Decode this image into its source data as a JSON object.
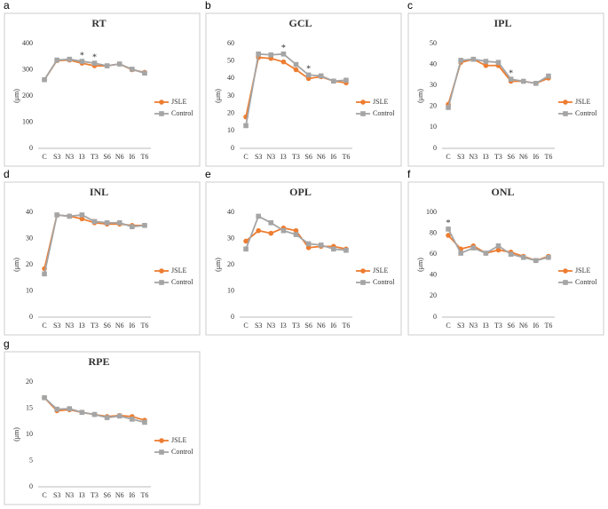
{
  "chart_data": [
    {
      "type": "line",
      "panel": "a",
      "title": "RT",
      "ylabel": "(μm)",
      "categories": [
        "C",
        "S3",
        "N3",
        "I3",
        "T3",
        "S6",
        "N6",
        "I6",
        "T6"
      ],
      "series": [
        {
          "name": "JSLE",
          "color": "#ED7D31",
          "marker": "circle",
          "values": [
            262,
            335,
            337,
            325,
            315,
            315,
            322,
            300,
            290
          ]
        },
        {
          "name": "Control",
          "color": "#A5A5A5",
          "marker": "square",
          "values": [
            262,
            337,
            340,
            332,
            325,
            315,
            322,
            302,
            287
          ]
        }
      ],
      "ylim": [
        0,
        400
      ],
      "yticks": [
        0,
        100,
        200,
        300,
        400
      ],
      "grid": false,
      "legend": "right",
      "annotations": [
        {
          "text": "*",
          "category": "I3"
        },
        {
          "text": "*",
          "category": "T3"
        }
      ]
    },
    {
      "type": "line",
      "panel": "b",
      "title": "GCL",
      "ylabel": "(μm)",
      "categories": [
        "C",
        "S3",
        "N3",
        "I3",
        "T3",
        "S6",
        "N6",
        "I6",
        "T6"
      ],
      "series": [
        {
          "name": "JSLE",
          "color": "#ED7D31",
          "marker": "circle",
          "values": [
            18,
            52,
            51.5,
            49.5,
            45,
            40,
            41,
            38.5,
            37.5
          ]
        },
        {
          "name": "Control",
          "color": "#A5A5A5",
          "marker": "square",
          "values": [
            13,
            54,
            53.5,
            54,
            48,
            42,
            41.5,
            38.5,
            39
          ]
        }
      ],
      "ylim": [
        0,
        60
      ],
      "yticks": [
        0,
        10,
        20,
        30,
        40,
        50,
        60
      ],
      "grid": false,
      "legend": "right",
      "annotations": [
        {
          "text": "*",
          "category": "I3"
        },
        {
          "text": "*",
          "category": "S6"
        }
      ]
    },
    {
      "type": "line",
      "panel": "c",
      "title": "IPL",
      "ylabel": "(μm)",
      "categories": [
        "C",
        "S3",
        "N3",
        "I3",
        "T3",
        "S6",
        "N6",
        "I6",
        "T6"
      ],
      "series": [
        {
          "name": "JSLE",
          "color": "#ED7D31",
          "marker": "circle",
          "values": [
            21,
            41,
            42.5,
            39.5,
            39.5,
            32,
            32,
            31,
            33.5
          ]
        },
        {
          "name": "Control",
          "color": "#A5A5A5",
          "marker": "square",
          "values": [
            19.5,
            42,
            42.5,
            41.5,
            41,
            33,
            32,
            31,
            34.5
          ]
        }
      ],
      "ylim": [
        0,
        50
      ],
      "yticks": [
        0,
        10,
        20,
        30,
        40,
        50
      ],
      "grid": false,
      "legend": "right",
      "annotations": [
        {
          "text": "*",
          "category": "S6"
        }
      ]
    },
    {
      "type": "line",
      "panel": "d",
      "title": "INL",
      "ylabel": "(μm)",
      "categories": [
        "C",
        "S3",
        "N3",
        "I3",
        "T3",
        "S6",
        "N6",
        "I6",
        "T6"
      ],
      "series": [
        {
          "name": "JSLE",
          "color": "#ED7D31",
          "marker": "circle",
          "values": [
            18.5,
            39,
            38.5,
            37.5,
            36,
            35.5,
            35.5,
            35,
            35
          ]
        },
        {
          "name": "Control",
          "color": "#A5A5A5",
          "marker": "square",
          "values": [
            16.5,
            39,
            38.5,
            39,
            36.5,
            36,
            36,
            34.5,
            35
          ]
        }
      ],
      "ylim": [
        0,
        40
      ],
      "yticks": [
        0,
        10,
        20,
        30,
        40
      ],
      "grid": false,
      "legend": "right",
      "annotations": []
    },
    {
      "type": "line",
      "panel": "e",
      "title": "OPL",
      "ylabel": "(μm)",
      "categories": [
        "C",
        "S3",
        "N3",
        "I3",
        "T3",
        "S6",
        "N6",
        "I6",
        "T6"
      ],
      "series": [
        {
          "name": "JSLE",
          "color": "#ED7D31",
          "marker": "circle",
          "values": [
            29,
            33,
            32,
            34,
            33,
            26.5,
            27,
            27,
            26
          ]
        },
        {
          "name": "Control",
          "color": "#A5A5A5",
          "marker": "square",
          "values": [
            26,
            38.5,
            36,
            33,
            31.5,
            28,
            27.5,
            26,
            25.5
          ]
        }
      ],
      "ylim": [
        0,
        40
      ],
      "yticks": [
        0,
        10,
        20,
        30,
        40
      ],
      "grid": false,
      "legend": "right",
      "annotations": []
    },
    {
      "type": "line",
      "panel": "f",
      "title": "ONL",
      "ylabel": "(μm)",
      "categories": [
        "C",
        "S3",
        "N3",
        "I3",
        "T3",
        "S6",
        "N6",
        "I6",
        "T6"
      ],
      "series": [
        {
          "name": "JSLE",
          "color": "#ED7D31",
          "marker": "circle",
          "values": [
            78,
            65,
            68,
            61,
            64,
            62,
            58,
            54,
            58
          ]
        },
        {
          "name": "Control",
          "color": "#A5A5A5",
          "marker": "square",
          "values": [
            84,
            61,
            66,
            61,
            68,
            60,
            57,
            54,
            57
          ]
        }
      ],
      "ylim": [
        0,
        100
      ],
      "yticks": [
        0,
        20,
        40,
        60,
        80,
        100
      ],
      "grid": false,
      "legend": "right",
      "annotations": [
        {
          "text": "*",
          "category": "C"
        }
      ]
    },
    {
      "type": "line",
      "panel": "g",
      "title": "RPE",
      "ylabel": "(μm)",
      "categories": [
        "C",
        "S3",
        "N3",
        "I3",
        "T3",
        "S6",
        "N6",
        "I6",
        "T6"
      ],
      "series": [
        {
          "name": "JSLE",
          "color": "#ED7D31",
          "marker": "circle",
          "values": [
            17,
            14.5,
            14.7,
            14.2,
            13.8,
            13.4,
            13.6,
            13.4,
            12.7
          ]
        },
        {
          "name": "Control",
          "color": "#A5A5A5",
          "marker": "square",
          "values": [
            17,
            14.8,
            14.9,
            14.2,
            13.8,
            13.2,
            13.5,
            12.9,
            12.3
          ]
        }
      ],
      "ylim": [
        0,
        20
      ],
      "yticks": [
        0,
        5,
        10,
        15,
        20
      ],
      "grid": false,
      "legend": "right",
      "annotations": []
    }
  ]
}
